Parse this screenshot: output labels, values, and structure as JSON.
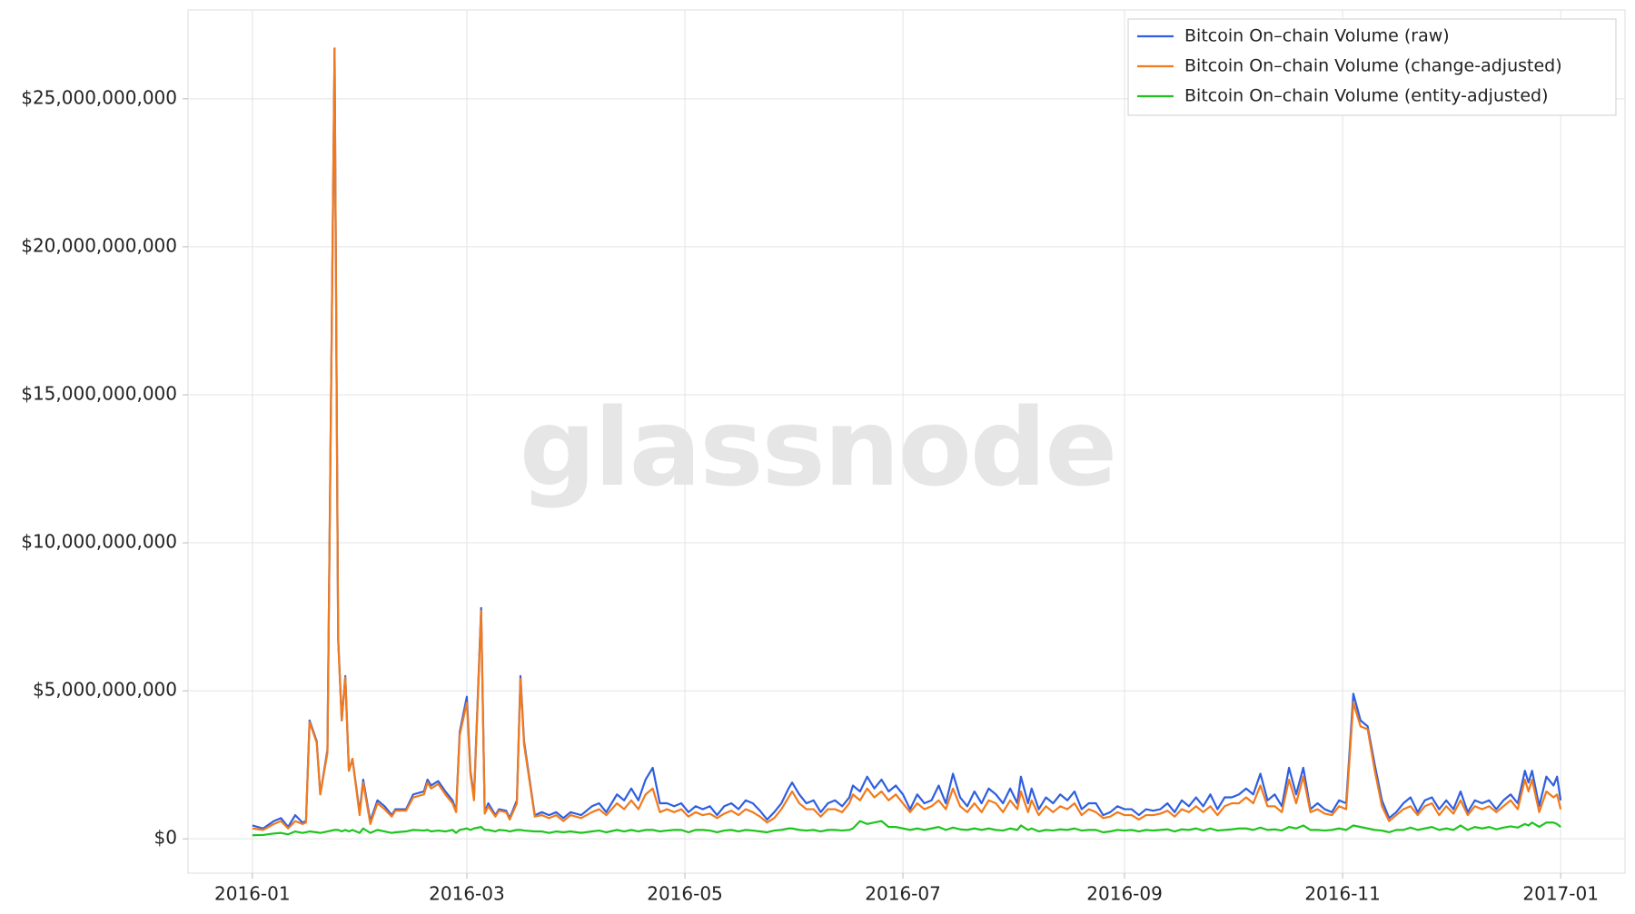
{
  "chart_data": {
    "type": "line",
    "watermark": "glassnode",
    "legend": "upper right",
    "grid": true,
    "xlim": [
      -18,
      384
    ],
    "ylim": [
      -1160000000.0,
      28000000000.0
    ],
    "xticks": [
      {
        "value": 0,
        "label": "2016-01"
      },
      {
        "value": 60,
        "label": "2016-03"
      },
      {
        "value": 121,
        "label": "2016-05"
      },
      {
        "value": 182,
        "label": "2016-07"
      },
      {
        "value": 244,
        "label": "2016-09"
      },
      {
        "value": 305,
        "label": "2016-11"
      },
      {
        "value": 366,
        "label": "2017-01"
      }
    ],
    "yticks": [
      {
        "value": 0,
        "label": "$0"
      },
      {
        "value": 5000000000.0,
        "label": "$5,000,000,000"
      },
      {
        "value": 10000000000.0,
        "label": "$10,000,000,000"
      },
      {
        "value": 15000000000.0,
        "label": "$15,000,000,000"
      },
      {
        "value": 20000000000.0,
        "label": "$20,000,000,000"
      },
      {
        "value": 25000000000.0,
        "label": "$25,000,000,000"
      }
    ],
    "x": [
      0,
      3,
      6,
      8,
      10,
      12,
      14,
      15,
      16,
      18,
      19,
      21,
      23,
      24,
      25,
      26,
      27,
      28,
      30,
      31,
      33,
      35,
      37,
      39,
      40,
      43,
      45,
      48,
      49,
      50,
      52,
      54,
      56,
      57,
      58,
      60,
      61,
      62,
      64,
      65,
      66,
      68,
      69,
      71,
      72,
      74,
      75,
      76,
      79,
      81,
      83,
      85,
      87,
      89,
      92,
      95,
      97,
      99,
      102,
      104,
      106,
      108,
      110,
      112,
      114,
      116,
      118,
      120,
      122,
      124,
      126,
      128,
      130,
      132,
      134,
      136,
      138,
      140,
      142,
      144,
      146,
      148,
      150,
      151,
      153,
      155,
      157,
      159,
      161,
      163,
      165,
      167,
      168,
      170,
      172,
      174,
      176,
      178,
      180,
      182,
      184,
      186,
      188,
      190,
      192,
      194,
      196,
      198,
      200,
      202,
      204,
      206,
      208,
      210,
      212,
      214,
      215,
      217,
      218,
      220,
      222,
      224,
      226,
      228,
      230,
      232,
      234,
      236,
      238,
      240,
      242,
      244,
      246,
      248,
      250,
      252,
      254,
      256,
      258,
      260,
      262,
      264,
      266,
      268,
      270,
      272,
      274,
      276,
      278,
      280,
      282,
      284,
      286,
      288,
      290,
      292,
      294,
      296,
      298,
      300,
      302,
      304,
      306,
      308,
      310,
      312,
      314,
      316,
      318,
      320,
      322,
      324,
      326,
      328,
      330,
      332,
      334,
      336,
      338,
      340,
      342,
      344,
      346,
      348,
      350,
      352,
      354,
      356,
      357,
      358,
      360,
      362,
      364,
      365,
      366
    ],
    "series": [
      {
        "name": "Bitcoin On–chain Volume (raw)",
        "color": "#2f5fe0",
        "values": [
          450000000.0,
          350000000.0,
          600000000.0,
          700000000.0,
          400000000.0,
          800000000.0,
          550000000.0,
          600000000.0,
          4000000000.0,
          3300000000.0,
          1500000000.0,
          3000000000.0,
          26700000000.0,
          6800000000.0,
          4000000000.0,
          5500000000.0,
          2300000000.0,
          2700000000.0,
          900000000.0,
          2000000000.0,
          600000000.0,
          1300000000.0,
          1100000000.0,
          800000000.0,
          1000000000.0,
          1000000000.0,
          1500000000.0,
          1600000000.0,
          2000000000.0,
          1800000000.0,
          1950000000.0,
          1600000000.0,
          1300000000.0,
          950000000.0,
          3600000000.0,
          4800000000.0,
          2300000000.0,
          1400000000.0,
          7800000000.0,
          900000000.0,
          1200000000.0,
          800000000.0,
          1000000000.0,
          950000000.0,
          700000000.0,
          1300000000.0,
          5500000000.0,
          3300000000.0,
          800000000.0,
          900000000.0,
          800000000.0,
          900000000.0,
          700000000.0,
          900000000.0,
          800000000.0,
          1100000000.0,
          1200000000.0,
          900000000.0,
          1500000000.0,
          1300000000.0,
          1700000000.0,
          1300000000.0,
          2000000000.0,
          2400000000.0,
          1200000000.0,
          1200000000.0,
          1100000000.0,
          1200000000.0,
          900000000.0,
          1100000000.0,
          1000000000.0,
          1100000000.0,
          800000000.0,
          1100000000.0,
          1200000000.0,
          1000000000.0,
          1300000000.0,
          1200000000.0,
          950000000.0,
          650000000.0,
          900000000.0,
          1200000000.0,
          1700000000.0,
          1900000000.0,
          1500000000.0,
          1200000000.0,
          1300000000.0,
          900000000.0,
          1200000000.0,
          1300000000.0,
          1100000000.0,
          1400000000.0,
          1800000000.0,
          1600000000.0,
          2100000000.0,
          1700000000.0,
          2000000000.0,
          1600000000.0,
          1800000000.0,
          1500000000.0,
          1000000000.0,
          1500000000.0,
          1200000000.0,
          1300000000.0,
          1800000000.0,
          1200000000.0,
          2200000000.0,
          1400000000.0,
          1100000000.0,
          1600000000.0,
          1200000000.0,
          1700000000.0,
          1500000000.0,
          1200000000.0,
          1700000000.0,
          1200000000.0,
          2100000000.0,
          1200000000.0,
          1700000000.0,
          1000000000.0,
          1400000000.0,
          1200000000.0,
          1500000000.0,
          1300000000.0,
          1600000000.0,
          1000000000.0,
          1200000000.0,
          1200000000.0,
          800000000.0,
          900000000.0,
          1100000000.0,
          1000000000.0,
          1000000000.0,
          800000000.0,
          1000000000.0,
          950000000.0,
          1000000000.0,
          1200000000.0,
          900000000.0,
          1300000000.0,
          1100000000.0,
          1400000000.0,
          1100000000.0,
          1500000000.0,
          1000000000.0,
          1400000000.0,
          1400000000.0,
          1500000000.0,
          1700000000.0,
          1500000000.0,
          2200000000.0,
          1300000000.0,
          1500000000.0,
          1100000000.0,
          2400000000.0,
          1500000000.0,
          2400000000.0,
          1000000000.0,
          1200000000.0,
          1000000000.0,
          900000000.0,
          1300000000.0,
          1200000000.0,
          4900000000.0,
          4000000000.0,
          3800000000.0,
          2500000000.0,
          1300000000.0,
          700000000.0,
          900000000.0,
          1200000000.0,
          1400000000.0,
          900000000.0,
          1300000000.0,
          1400000000.0,
          1000000000.0,
          1300000000.0,
          1000000000.0,
          1600000000.0,
          900000000.0,
          1300000000.0,
          1200000000.0,
          1300000000.0,
          1000000000.0,
          1300000000.0,
          1500000000.0,
          1200000000.0,
          2300000000.0,
          1900000000.0,
          2300000000.0,
          1100000000.0,
          2100000000.0,
          1800000000.0,
          2100000000.0,
          1300000000.0
        ]
      },
      {
        "name": "Bitcoin On–chain Volume (change-adjusted)",
        "color": "#f27a1c",
        "values": [
          350000000.0,
          300000000.0,
          500000000.0,
          600000000.0,
          350000000.0,
          600000000.0,
          500000000.0,
          550000000.0,
          3950000000.0,
          3250000000.0,
          1500000000.0,
          2900000000.0,
          26700000000.0,
          6700000000.0,
          4000000000.0,
          5450000000.0,
          2300000000.0,
          2700000000.0,
          800000000.0,
          1900000000.0,
          500000000.0,
          1200000000.0,
          1000000000.0,
          750000000.0,
          950000000.0,
          950000000.0,
          1400000000.0,
          1500000000.0,
          1900000000.0,
          1700000000.0,
          1850000000.0,
          1500000000.0,
          1200000000.0,
          900000000.0,
          3500000000.0,
          4600000000.0,
          2200000000.0,
          1300000000.0,
          7700000000.0,
          850000000.0,
          1100000000.0,
          750000000.0,
          950000000.0,
          900000000.0,
          650000000.0,
          1200000000.0,
          5400000000.0,
          3200000000.0,
          750000000.0,
          800000000.0,
          700000000.0,
          800000000.0,
          600000000.0,
          800000000.0,
          700000000.0,
          900000000.0,
          1000000000.0,
          800000000.0,
          1200000000.0,
          1000000000.0,
          1300000000.0,
          1000000000.0,
          1500000000.0,
          1700000000.0,
          900000000.0,
          1000000000.0,
          900000000.0,
          1000000000.0,
          750000000.0,
          900000000.0,
          800000000.0,
          850000000.0,
          700000000.0,
          850000000.0,
          950000000.0,
          800000000.0,
          1000000000.0,
          900000000.0,
          750000000.0,
          550000000.0,
          700000000.0,
          1000000000.0,
          1400000000.0,
          1600000000.0,
          1200000000.0,
          1000000000.0,
          1000000000.0,
          750000000.0,
          1000000000.0,
          1000000000.0,
          900000000.0,
          1200000000.0,
          1500000000.0,
          1300000000.0,
          1700000000.0,
          1400000000.0,
          1600000000.0,
          1300000000.0,
          1500000000.0,
          1200000000.0,
          900000000.0,
          1200000000.0,
          1000000000.0,
          1100000000.0,
          1300000000.0,
          1000000000.0,
          1700000000.0,
          1100000000.0,
          900000000.0,
          1200000000.0,
          900000000.0,
          1300000000.0,
          1200000000.0,
          900000000.0,
          1300000000.0,
          1000000000.0,
          1600000000.0,
          900000000.0,
          1300000000.0,
          800000000.0,
          1100000000.0,
          900000000.0,
          1100000000.0,
          1000000000.0,
          1200000000.0,
          800000000.0,
          1000000000.0,
          900000000.0,
          700000000.0,
          750000000.0,
          900000000.0,
          800000000.0,
          800000000.0,
          650000000.0,
          800000000.0,
          800000000.0,
          850000000.0,
          950000000.0,
          750000000.0,
          1000000000.0,
          900000000.0,
          1100000000.0,
          900000000.0,
          1100000000.0,
          800000000.0,
          1100000000.0,
          1200000000.0,
          1200000000.0,
          1400000000.0,
          1200000000.0,
          1800000000.0,
          1100000000.0,
          1100000000.0,
          900000000.0,
          2000000000.0,
          1200000000.0,
          2100000000.0,
          900000000.0,
          1000000000.0,
          850000000.0,
          800000000.0,
          1100000000.0,
          1000000000.0,
          4600000000.0,
          3800000000.0,
          3700000000.0,
          2300000000.0,
          1100000000.0,
          600000000.0,
          800000000.0,
          1000000000.0,
          1100000000.0,
          800000000.0,
          1100000000.0,
          1200000000.0,
          800000000.0,
          1100000000.0,
          850000000.0,
          1300000000.0,
          800000000.0,
          1100000000.0,
          1000000000.0,
          1100000000.0,
          900000000.0,
          1100000000.0,
          1300000000.0,
          1000000000.0,
          2000000000.0,
          1600000000.0,
          2000000000.0,
          900000000.0,
          1600000000.0,
          1400000000.0,
          1500000000.0,
          1000000000.0
        ]
      },
      {
        "name": "Bitcoin On–chain Volume (entity-adjusted)",
        "color": "#1ec41e",
        "values": [
          120000000.0,
          130000000.0,
          180000000.0,
          200000000.0,
          150000000.0,
          250000000.0,
          200000000.0,
          220000000.0,
          250000000.0,
          220000000.0,
          200000000.0,
          250000000.0,
          300000000.0,
          300000000.0,
          250000000.0,
          300000000.0,
          250000000.0,
          300000000.0,
          200000000.0,
          350000000.0,
          200000000.0,
          300000000.0,
          250000000.0,
          200000000.0,
          220000000.0,
          250000000.0,
          300000000.0,
          280000000.0,
          300000000.0,
          250000000.0,
          280000000.0,
          250000000.0,
          300000000.0,
          200000000.0,
          300000000.0,
          350000000.0,
          300000000.0,
          350000000.0,
          400000000.0,
          300000000.0,
          300000000.0,
          250000000.0,
          300000000.0,
          280000000.0,
          250000000.0,
          300000000.0,
          300000000.0,
          280000000.0,
          250000000.0,
          250000000.0,
          200000000.0,
          250000000.0,
          220000000.0,
          250000000.0,
          200000000.0,
          250000000.0,
          280000000.0,
          220000000.0,
          300000000.0,
          250000000.0,
          300000000.0,
          250000000.0,
          300000000.0,
          300000000.0,
          250000000.0,
          280000000.0,
          300000000.0,
          300000000.0,
          220000000.0,
          300000000.0,
          300000000.0,
          280000000.0,
          220000000.0,
          280000000.0,
          300000000.0,
          250000000.0,
          300000000.0,
          280000000.0,
          250000000.0,
          220000000.0,
          280000000.0,
          300000000.0,
          350000000.0,
          350000000.0,
          300000000.0,
          280000000.0,
          300000000.0,
          250000000.0,
          300000000.0,
          300000000.0,
          280000000.0,
          300000000.0,
          350000000.0,
          600000000.0,
          500000000.0,
          550000000.0,
          600000000.0,
          400000000.0,
          400000000.0,
          350000000.0,
          300000000.0,
          350000000.0,
          300000000.0,
          350000000.0,
          400000000.0,
          300000000.0,
          380000000.0,
          320000000.0,
          300000000.0,
          350000000.0,
          300000000.0,
          350000000.0,
          300000000.0,
          280000000.0,
          350000000.0,
          300000000.0,
          450000000.0,
          300000000.0,
          350000000.0,
          250000000.0,
          300000000.0,
          280000000.0,
          320000000.0,
          300000000.0,
          350000000.0,
          280000000.0,
          300000000.0,
          300000000.0,
          220000000.0,
          250000000.0,
          300000000.0,
          280000000.0,
          300000000.0,
          250000000.0,
          300000000.0,
          280000000.0,
          300000000.0,
          320000000.0,
          250000000.0,
          320000000.0,
          300000000.0,
          350000000.0,
          280000000.0,
          350000000.0,
          280000000.0,
          300000000.0,
          320000000.0,
          350000000.0,
          350000000.0,
          300000000.0,
          380000000.0,
          300000000.0,
          320000000.0,
          280000000.0,
          400000000.0,
          350000000.0,
          450000000.0,
          300000000.0,
          300000000.0,
          280000000.0,
          300000000.0,
          350000000.0,
          300000000.0,
          450000000.0,
          400000000.0,
          350000000.0,
          300000000.0,
          280000000.0,
          220000000.0,
          300000000.0,
          300000000.0,
          380000000.0,
          300000000.0,
          350000000.0,
          400000000.0,
          300000000.0,
          350000000.0,
          300000000.0,
          450000000.0,
          300000000.0,
          400000000.0,
          350000000.0,
          400000000.0,
          320000000.0,
          380000000.0,
          420000000.0,
          380000000.0,
          500000000.0,
          450000000.0,
          550000000.0,
          400000000.0,
          550000000.0,
          550000000.0,
          500000000.0,
          400000000.0
        ]
      }
    ]
  }
}
